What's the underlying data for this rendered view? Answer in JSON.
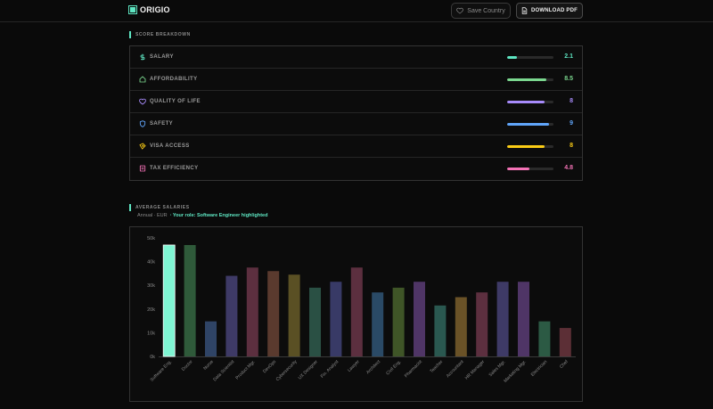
{
  "header": {
    "brand": "ORIGIO",
    "save_label": "Save Country",
    "pdf_label": "DOWNLOAD PDF"
  },
  "score_breakdown": {
    "title": "SCORE BREAKDOWN",
    "items": [
      {
        "label": "SALARY",
        "value": "2.1",
        "fraction": 0.21,
        "color": "#5ee6c2",
        "icon": "dollar-icon"
      },
      {
        "label": "AFFORDABILITY",
        "value": "8.5",
        "fraction": 0.85,
        "color": "#7bd88f",
        "icon": "home-icon"
      },
      {
        "label": "QUALITY OF LIFE",
        "value": "8",
        "fraction": 0.8,
        "color": "#a78bfa",
        "icon": "heart-icon"
      },
      {
        "label": "SAFETY",
        "value": "9",
        "fraction": 0.9,
        "color": "#60a5fa",
        "icon": "shield-icon"
      },
      {
        "label": "VISA ACCESS",
        "value": "8",
        "fraction": 0.8,
        "color": "#facc15",
        "icon": "passport-icon"
      },
      {
        "label": "TAX EFFICIENCY",
        "value": "4.8",
        "fraction": 0.48,
        "color": "#f472b6",
        "icon": "receipt-icon"
      }
    ]
  },
  "salaries": {
    "title": "AVERAGE SALARIES",
    "subtitle": "Annual · EUR",
    "role_note": "· Your role: Software Engineer highlighted"
  },
  "chart_data": {
    "type": "bar",
    "categories": [
      "Software Eng.",
      "Doctor",
      "Nurse",
      "Data Scientist",
      "Product Mgr.",
      "DevOps",
      "Cybersecurity",
      "UX Designer",
      "Fin. Analyst",
      "Lawyer",
      "Architect",
      "Civil Eng.",
      "Pharmacist",
      "Teacher",
      "Accountant",
      "HR Manager",
      "Sales Mgr.",
      "Marketing Mgr.",
      "Electrician",
      "Chef"
    ],
    "values": [
      47000,
      47000,
      14800,
      34000,
      37500,
      36000,
      34500,
      29000,
      31500,
      37500,
      27000,
      29000,
      31500,
      21500,
      25000,
      27000,
      31500,
      31500,
      14800,
      12000
    ],
    "colors": [
      "#7ff5d3",
      "#2f5a3a",
      "#2f4466",
      "#3e3a66",
      "#5c2f3f",
      "#5a3a2e",
      "#5a5024",
      "#2a5044",
      "#383a66",
      "#5c2f3f",
      "#2a4a66",
      "#3f5527",
      "#4f3566",
      "#2a5850",
      "#6a5227",
      "#5c2f3f",
      "#3e3a66",
      "#4f3566",
      "#2c5a44",
      "#5c2f36"
    ],
    "highlight_index": 0,
    "highlight_color": "#7ff5d3",
    "yticks": [
      "0k",
      "10k",
      "20k",
      "30k",
      "40k",
      "50k"
    ],
    "ylim": [
      0,
      50000
    ],
    "grid": false
  }
}
